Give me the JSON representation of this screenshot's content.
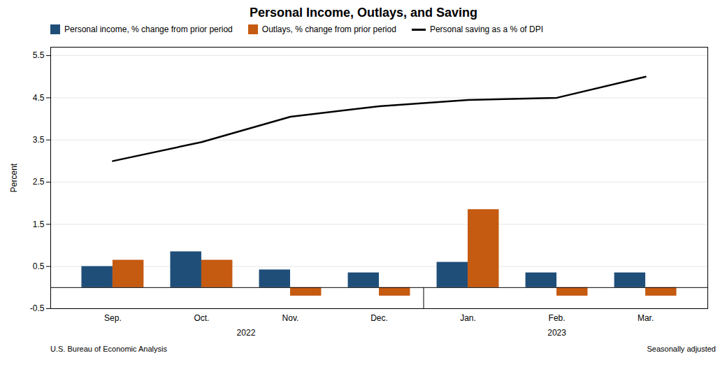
{
  "chart_data": {
    "type": "bar",
    "title": "Personal Income, Outlays, and Saving",
    "ylabel": "Percent",
    "categories": [
      "Sep.",
      "Oct.",
      "Nov.",
      "Dec.",
      "Jan.",
      "Feb.",
      "Mar."
    ],
    "series": [
      {
        "name": "Personal income, % change from prior period",
        "type": "bar",
        "color": "#1F4E79",
        "values": [
          0.5,
          0.85,
          0.42,
          0.35,
          0.6,
          0.35,
          0.35
        ]
      },
      {
        "name": "Outlays, % change from prior period",
        "type": "bar",
        "color": "#C55A11",
        "values": [
          0.65,
          0.65,
          -0.2,
          -0.2,
          1.85,
          -0.2,
          -0.2
        ]
      },
      {
        "name": "Personal saving as a % of DPI",
        "type": "line",
        "color": "#000000",
        "values": [
          3.0,
          3.45,
          4.05,
          4.3,
          4.45,
          4.5,
          5.0
        ]
      }
    ],
    "ylim": [
      -0.5,
      5.7
    ],
    "yticks": [
      -0.5,
      0.5,
      1.5,
      2.5,
      3.5,
      4.5,
      5.5
    ],
    "grid": true,
    "legend": "upper left",
    "annotations": [
      {
        "text": "2022",
        "categories": [
          "Sep.",
          "Oct.",
          "Nov.",
          "Dec."
        ]
      },
      {
        "text": "2023",
        "categories": [
          "Jan.",
          "Feb.",
          "Mar."
        ]
      }
    ],
    "source": "U.S. Bureau of Economic Analysis",
    "note": "Seasonally adjusted"
  }
}
